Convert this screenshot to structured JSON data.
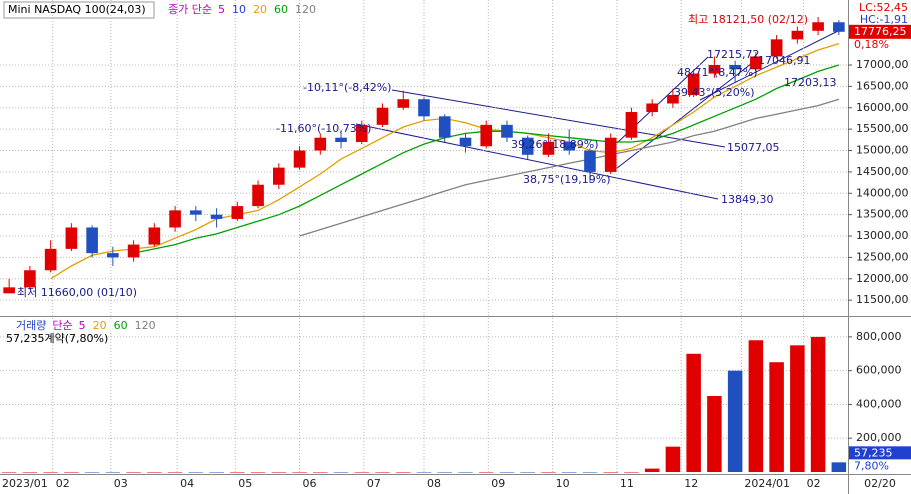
{
  "chart_data": [
    {
      "type": "candlestick",
      "title": "Mini NASDAQ 100(24,03)",
      "legend_label": "종가 단순",
      "legend": [
        {
          "name": "5",
          "color": "#c000c0"
        },
        {
          "name": "10",
          "color": "#2040d0"
        },
        {
          "name": "20",
          "color": "#e0a000"
        },
        {
          "name": "60",
          "color": "#00a000"
        },
        {
          "name": "120",
          "color": "#808080"
        }
      ],
      "up_color": "#e00000",
      "down_color": "#2050c0",
      "open": [
        11660,
        11800,
        12200,
        12700,
        13200,
        12600,
        12500,
        12800,
        13200,
        13600,
        13500,
        13400,
        13700,
        14200,
        14600,
        15000,
        15300,
        15200,
        15600,
        16000,
        16200,
        15800,
        15300,
        15100,
        15600,
        15300,
        14900,
        15200,
        15000,
        14500,
        15300,
        15900,
        16100,
        16300,
        16800,
        17000,
        16900,
        17200,
        17600,
        17800,
        18000
      ],
      "high": [
        12000,
        12300,
        12900,
        13300,
        13250,
        12750,
        12900,
        13300,
        13700,
        13700,
        13650,
        13800,
        14300,
        14700,
        15100,
        15400,
        15450,
        15700,
        16100,
        16400,
        16250,
        15850,
        15400,
        15700,
        15700,
        15350,
        15400,
        15500,
        15050,
        15400,
        16000,
        16200,
        16450,
        16900,
        17200,
        17100,
        17300,
        17700,
        17900,
        18121,
        18050
      ],
      "low": [
        11660,
        11750,
        12150,
        12650,
        12500,
        12300,
        12400,
        12750,
        13100,
        13350,
        13200,
        13350,
        13650,
        14100,
        14550,
        14900,
        15050,
        15150,
        15550,
        15950,
        15700,
        15200,
        14950,
        15050,
        15200,
        14800,
        14850,
        14900,
        14250,
        14450,
        15250,
        15800,
        16000,
        16250,
        16700,
        16600,
        16800,
        17150,
        17500,
        17700,
        17700
      ],
      "close": [
        11800,
        12200,
        12700,
        13200,
        12600,
        12500,
        12800,
        13200,
        13600,
        13500,
        13400,
        13700,
        14200,
        14600,
        15000,
        15300,
        15200,
        15600,
        16000,
        16200,
        15800,
        15300,
        15100,
        15600,
        15300,
        14900,
        15200,
        15000,
        14500,
        15300,
        15900,
        16100,
        16300,
        16800,
        17000,
        16900,
        17200,
        17600,
        17800,
        18000,
        17776
      ],
      "series": [
        {
          "color": "#e0a000",
          "values": [
            null,
            null,
            12000,
            12300,
            12550,
            12650,
            12700,
            12750,
            12950,
            13150,
            13400,
            13500,
            13600,
            13850,
            14150,
            14450,
            14800,
            15050,
            15300,
            15550,
            15700,
            15750,
            15650,
            15500,
            15450,
            15400,
            15300,
            15200,
            15000,
            14950,
            15050,
            15300,
            15600,
            15900,
            16250,
            16500,
            16750,
            16950,
            17150,
            17350,
            17500
          ]
        },
        {
          "color": "#00a000",
          "values": [
            null,
            null,
            null,
            null,
            null,
            null,
            12600,
            12700,
            12800,
            12950,
            13050,
            13200,
            13350,
            13500,
            13700,
            13950,
            14200,
            14450,
            14700,
            14950,
            15150,
            15300,
            15400,
            15450,
            15450,
            15400,
            15350,
            15300,
            15250,
            15200,
            15200,
            15250,
            15400,
            15600,
            15800,
            16000,
            16200,
            16450,
            16650,
            16850,
            17000
          ]
        },
        {
          "color": "#808080",
          "values": [
            null,
            null,
            null,
            null,
            null,
            null,
            null,
            null,
            null,
            null,
            null,
            null,
            null,
            null,
            13000,
            13150,
            13300,
            13450,
            13600,
            13750,
            13900,
            14050,
            14200,
            14300,
            14400,
            14500,
            14600,
            14700,
            14800,
            14900,
            15000,
            15100,
            15200,
            15350,
            15450,
            15600,
            15750,
            15850,
            15950,
            16050,
            16200
          ]
        }
      ],
      "xlim": [
        -0.2,
        40.2
      ],
      "xticks": [
        {
          "value": 0,
          "label": "2023/01"
        },
        {
          "value": 2.1,
          "label": "02"
        },
        {
          "value": 4.9,
          "label": "03"
        },
        {
          "value": 8.1,
          "label": "04"
        },
        {
          "value": 10.9,
          "label": "05"
        },
        {
          "value": 14,
          "label": "06"
        },
        {
          "value": 17.1,
          "label": "07"
        },
        {
          "value": 20,
          "label": "08"
        },
        {
          "value": 23.1,
          "label": "09"
        },
        {
          "value": 26.2,
          "label": "10"
        },
        {
          "value": 29.3,
          "label": "11"
        },
        {
          "value": 32.4,
          "label": "12"
        },
        {
          "value": 35.3,
          "label": "2024/01"
        },
        {
          "value": 38.3,
          "label": "02"
        }
      ],
      "x_end_label": "02/20",
      "ylim": [
        11200,
        18450
      ],
      "yticks": [
        {
          "value": 11500,
          "label": "11500,00"
        },
        {
          "value": 12000,
          "label": "12000,00"
        },
        {
          "value": 12500,
          "label": "12500,00"
        },
        {
          "value": 13000,
          "label": "13000,00"
        },
        {
          "value": 13500,
          "label": "13500,00"
        },
        {
          "value": 14000,
          "label": "14000,00"
        },
        {
          "value": 14500,
          "label": "14500,00"
        },
        {
          "value": 15000,
          "label": "15000,00"
        },
        {
          "value": 15500,
          "label": "15500,00"
        },
        {
          "value": 16000,
          "label": "16000,00"
        },
        {
          "value": 16500,
          "label": "16500,00"
        },
        {
          "value": 17000,
          "label": "17000,00"
        }
      ],
      "grid": true,
      "current": {
        "value": 17776.25,
        "label": "17776,25"
      },
      "change_label": "0,18%",
      "lc_label": "LC:52,45",
      "hc_label": "HC:-1,91",
      "annotations": [
        "최고 18121,50 (02/12)",
        "최저 11660,00 (01/10)",
        "-10,11°(-8,42%)",
        "-11,60°(-10,73%)",
        "39,26°(18,89%)",
        "38,75°(19,19%)",
        "15077,05",
        "13849,30",
        "17215,72",
        "48,71°(8,47%)",
        "39,43°(5,20%)",
        "17046,91",
        "17203,13"
      ]
    },
    {
      "type": "bar",
      "title": "거래량",
      "legend_label": "단순",
      "legend": [
        {
          "name": "5",
          "color": "#c000c0"
        },
        {
          "name": "20",
          "color": "#e0a000"
        },
        {
          "name": "60",
          "color": "#00a000"
        },
        {
          "name": "120",
          "color": "#808080"
        }
      ],
      "values": [
        0,
        0,
        0,
        0,
        0,
        0,
        0,
        0,
        0,
        0,
        0,
        0,
        0,
        0,
        0,
        0,
        0,
        0,
        0,
        0,
        0,
        0,
        0,
        0,
        0,
        0,
        0,
        0,
        0,
        0,
        0,
        20000,
        150000,
        700000,
        450000,
        600000,
        780000,
        650000,
        750000,
        800000,
        57235
      ],
      "ylim": [
        0,
        900000
      ],
      "yticks": [
        {
          "value": 200000,
          "label": "200,000"
        },
        {
          "value": 400000,
          "label": "400,000"
        },
        {
          "value": 600000,
          "label": "600,000"
        },
        {
          "value": 800000,
          "label": "800,000"
        }
      ],
      "current": {
        "value": 57235,
        "label": "57,235"
      },
      "change_label": "7,80%",
      "summary": "57,235계약(7,80%)"
    }
  ]
}
